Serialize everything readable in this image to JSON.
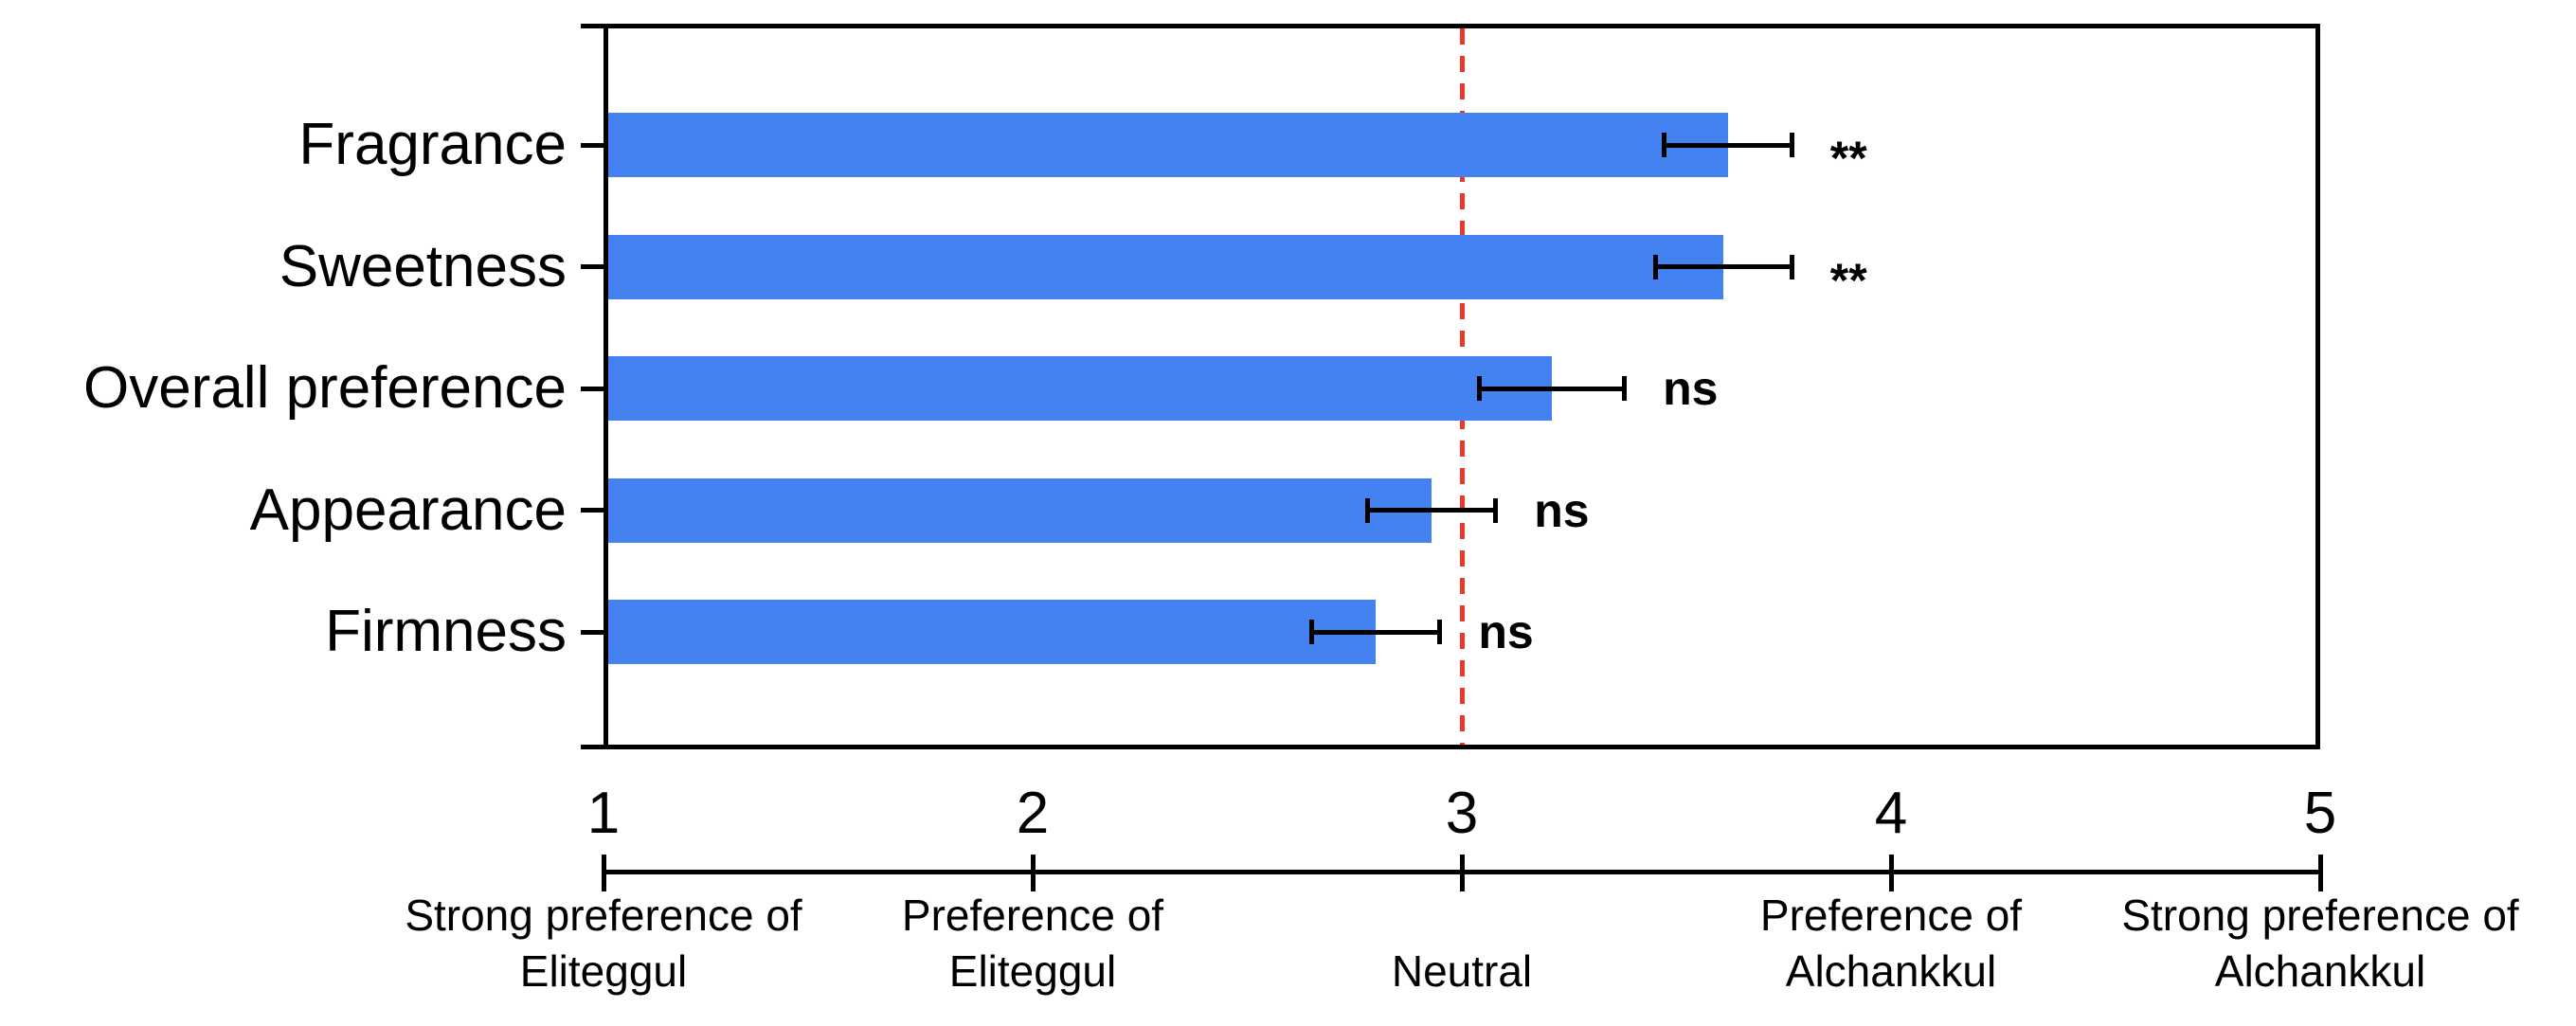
{
  "chart_data": {
    "type": "bar",
    "orientation": "horizontal",
    "title": "",
    "categories": [
      "Fragrance",
      "Sweetness",
      "Overall preference",
      "Appearance",
      "Firmness"
    ],
    "values": [
      3.62,
      3.61,
      3.21,
      2.93,
      2.8
    ],
    "error_bars": [
      0.15,
      0.16,
      0.17,
      0.15,
      0.15
    ],
    "significance": [
      "**",
      "**",
      "ns",
      "ns",
      "ns"
    ],
    "xlim": [
      1,
      5
    ],
    "x_ticks": [
      "1",
      "2",
      "3",
      "4",
      "5"
    ],
    "x_tick_values": [
      1,
      2,
      3,
      4,
      5
    ],
    "x_tick_descriptions": [
      {
        "line1": "Strong preference of",
        "line2": "Eliteggul"
      },
      {
        "line1": "Preference of",
        "line2": "Eliteggul"
      },
      {
        "line1": "",
        "line2": "Neutral"
      },
      {
        "line1": "Preference of",
        "line2": "Alchankkul"
      },
      {
        "line1": "Strong preference of",
        "line2": "Alchankkul"
      }
    ],
    "reference_line": {
      "x": 3,
      "meaning": "Neutral",
      "style": "dashed",
      "color": "#e8392c"
    },
    "colors": {
      "bar": "#4382f0",
      "axis": "#000000",
      "text": "#000000"
    },
    "grid": false,
    "legend": false
  }
}
